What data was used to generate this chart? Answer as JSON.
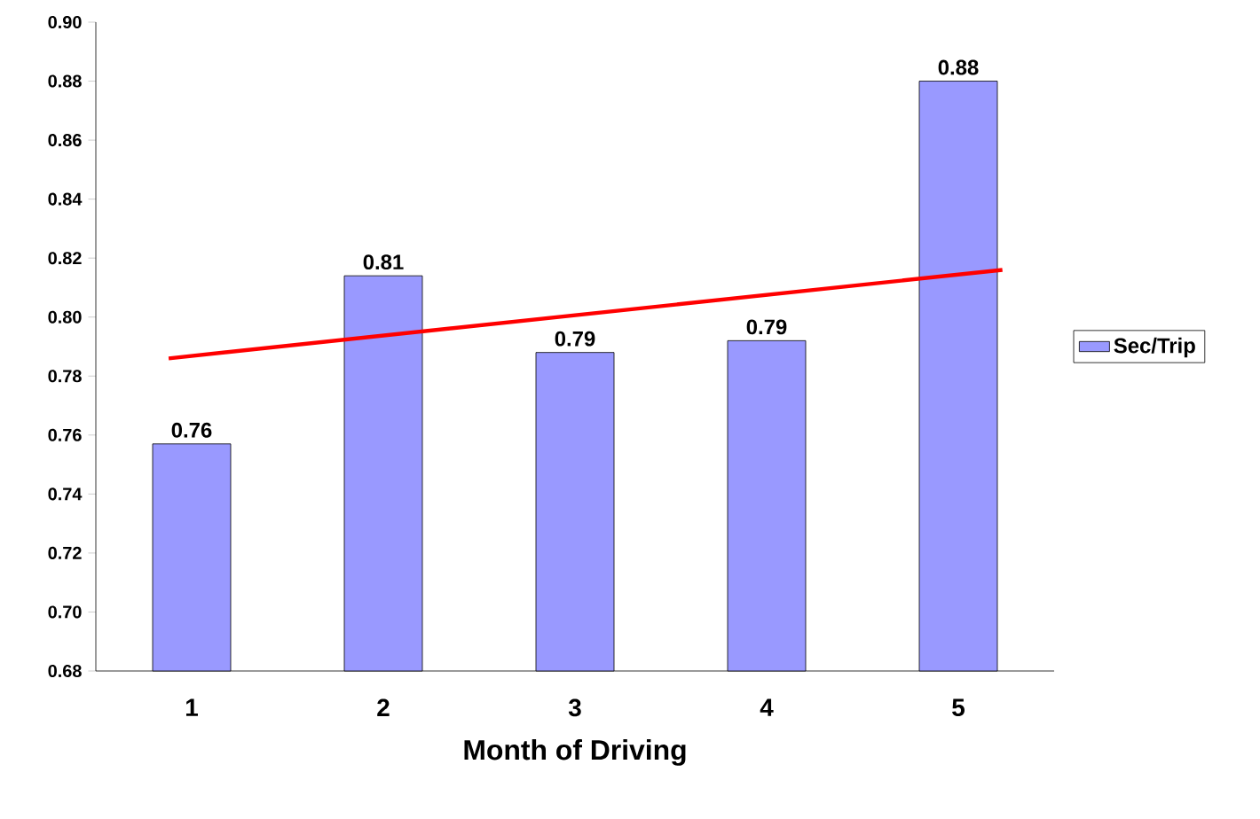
{
  "chart_data": {
    "type": "bar",
    "xlabel": "Month of Driving",
    "legend": "right",
    "x": [
      1,
      2,
      3,
      4,
      5
    ],
    "xlim": [
      0.5,
      5.5
    ],
    "xticks": [
      1,
      2,
      3,
      4,
      5
    ],
    "ylim": [
      0.68,
      0.9
    ],
    "yticks": [
      {
        "value": 0.68,
        "label": "0.68"
      },
      {
        "value": 0.7,
        "label": "0.70"
      },
      {
        "value": 0.72,
        "label": "0.72"
      },
      {
        "value": 0.74,
        "label": "0.74"
      },
      {
        "value": 0.76,
        "label": "0.76"
      },
      {
        "value": 0.78,
        "label": "0.78"
      },
      {
        "value": 0.8,
        "label": "0.80"
      },
      {
        "value": 0.82,
        "label": "0.82"
      },
      {
        "value": 0.84,
        "label": "0.84"
      },
      {
        "value": 0.86,
        "label": "0.86"
      },
      {
        "value": 0.88,
        "label": "0.88"
      },
      {
        "value": 0.9,
        "label": "0.90"
      }
    ],
    "series": [
      {
        "name": "Sec/Trip",
        "color": "#9999ff",
        "values": [
          0.757,
          0.814,
          0.788,
          0.792,
          0.88
        ],
        "value_labels": [
          "0.76",
          "0.81",
          "0.79",
          "0.79",
          "0.88"
        ]
      },
      {
        "type": "line",
        "color": "#ff0000",
        "x": [
          0.88,
          5.23
        ],
        "values": [
          0.786,
          0.816
        ]
      }
    ]
  }
}
